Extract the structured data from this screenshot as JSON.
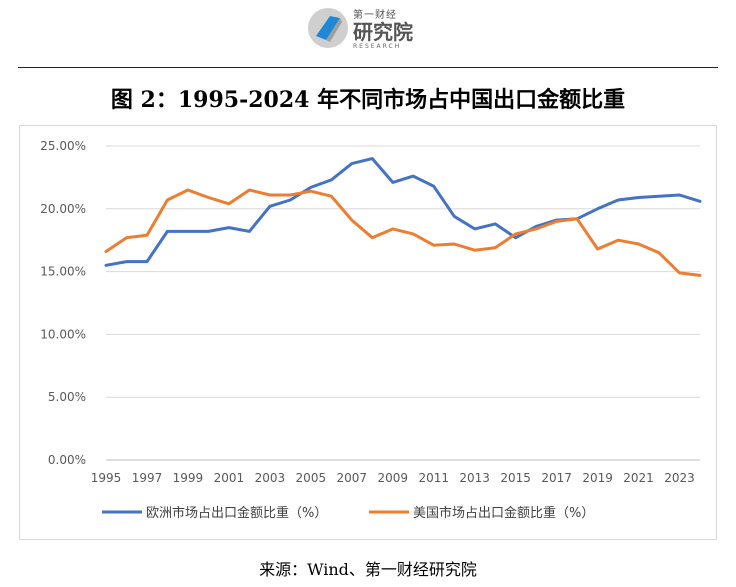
{
  "header": {
    "logo_small": "第一财经",
    "logo_big": "研究院",
    "logo_sub": "RESEARCH"
  },
  "figure": {
    "title": "图 2：1995-2024 年不同市场占中国出口金额比重",
    "source": "来源：Wind、第一财经研究院"
  },
  "chart_data": {
    "type": "line",
    "title": "",
    "xlabel": "",
    "ylabel": "",
    "x": [
      1995,
      1996,
      1997,
      1998,
      1999,
      2000,
      2001,
      2002,
      2003,
      2004,
      2005,
      2006,
      2007,
      2008,
      2009,
      2010,
      2011,
      2012,
      2013,
      2014,
      2015,
      2016,
      2017,
      2018,
      2019,
      2020,
      2021,
      2022,
      2023,
      2024
    ],
    "x_tick_labels": [
      "1995",
      "1997",
      "1999",
      "2001",
      "2003",
      "2005",
      "2007",
      "2009",
      "2011",
      "2013",
      "2015",
      "2017",
      "2019",
      "2021",
      "2023"
    ],
    "y_tick_labels": [
      "0.00%",
      "5.00%",
      "10.00%",
      "15.00%",
      "20.00%",
      "25.00%"
    ],
    "ylim": [
      0,
      25
    ],
    "y_unit": "%",
    "grid": "horizontal",
    "legend_position": "bottom",
    "series": [
      {
        "name": "欧洲市场占出口金额比重（%）",
        "color": "#4472c4",
        "values": [
          15.5,
          15.8,
          15.8,
          18.2,
          18.2,
          18.2,
          18.5,
          18.2,
          20.2,
          20.7,
          21.7,
          22.3,
          23.6,
          24.0,
          22.1,
          22.6,
          21.8,
          19.4,
          18.4,
          18.8,
          17.7,
          18.6,
          19.1,
          19.2,
          20.0,
          20.7,
          20.9,
          21.0,
          21.1,
          20.6
        ]
      },
      {
        "name": "美国市场占出口金额比重（%）",
        "color": "#ed7d31",
        "values": [
          16.6,
          17.7,
          17.9,
          20.7,
          21.5,
          20.9,
          20.4,
          21.5,
          21.1,
          21.1,
          21.4,
          21.0,
          19.1,
          17.7,
          18.4,
          18.0,
          17.1,
          17.2,
          16.7,
          16.9,
          18.0,
          18.4,
          19.0,
          19.2,
          16.8,
          17.5,
          17.2,
          16.5,
          14.9,
          14.7
        ]
      }
    ]
  }
}
